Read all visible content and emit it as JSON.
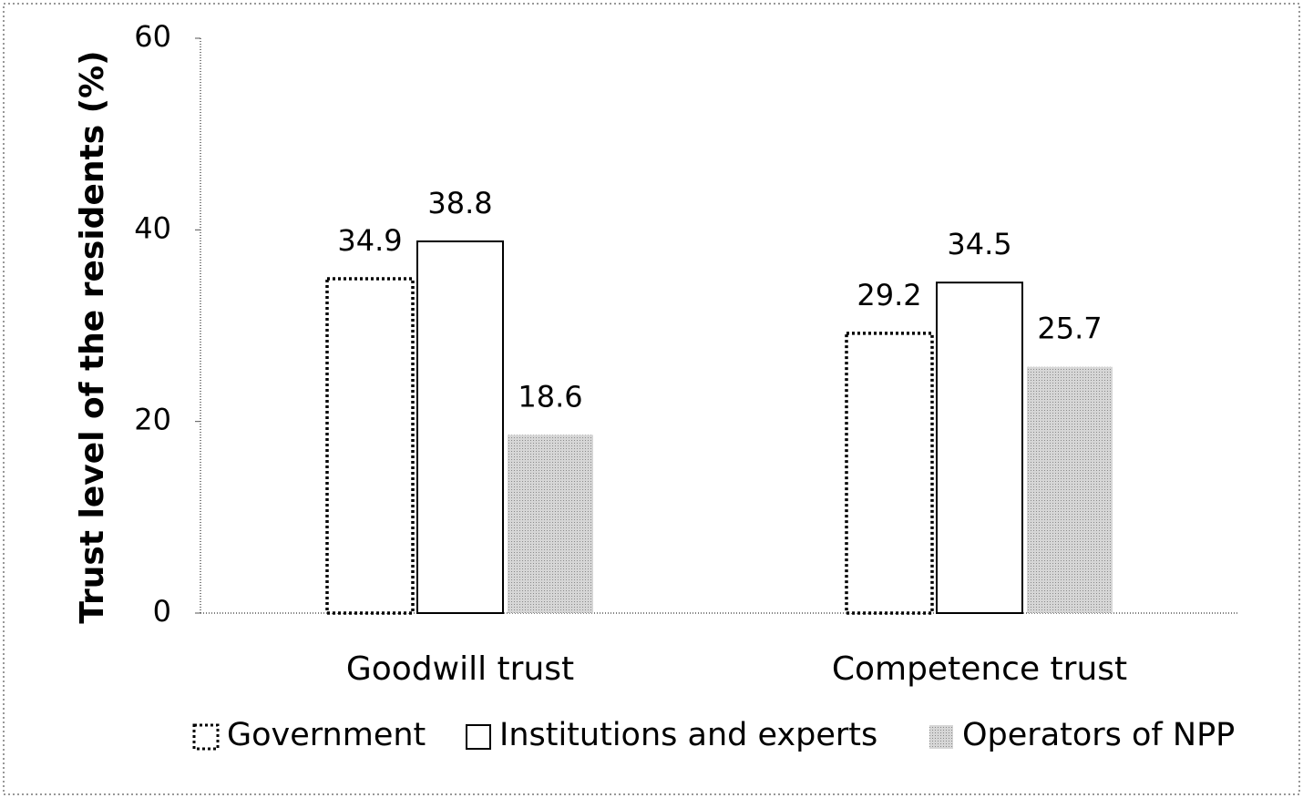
{
  "chart_data": {
    "type": "bar",
    "ylabel": "Trust level of the residents (%)",
    "categories": [
      "Goodwill trust",
      "Competence trust"
    ],
    "series": [
      {
        "name": "Government",
        "color": "#ffffff",
        "border": "dotted",
        "values": [
          34.9,
          29.2
        ]
      },
      {
        "name": "Institutions and experts",
        "color": "#ffffff",
        "border": "solid",
        "values": [
          38.8,
          34.5
        ]
      },
      {
        "name": "Operators of NPP",
        "color": "#bdbdbd",
        "border": "none",
        "values": [
          18.6,
          25.7
        ]
      }
    ],
    "ylim": [
      0,
      60
    ],
    "yticks": [
      0,
      20,
      40,
      60
    ],
    "grid": false,
    "legend": "bottom"
  }
}
